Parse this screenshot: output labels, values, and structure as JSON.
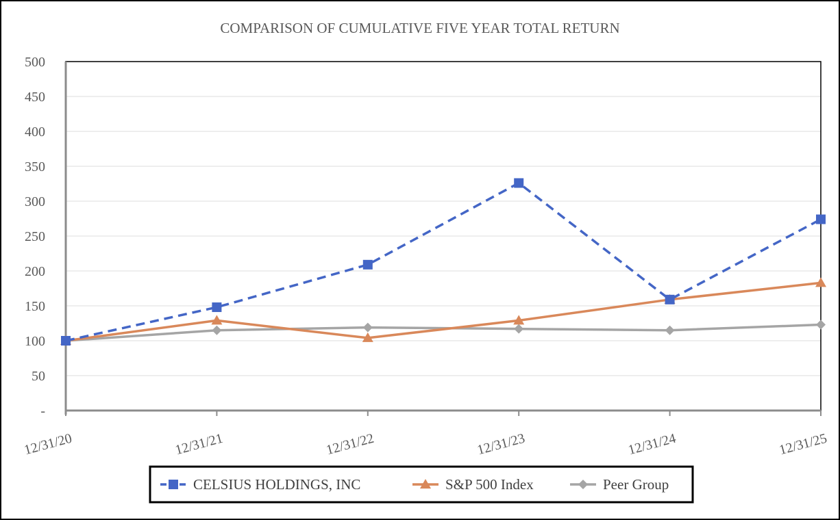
{
  "chart_data": {
    "type": "line",
    "title": "COMPARISON OF CUMULATIVE FIVE YEAR TOTAL RETURN",
    "xlabel": "",
    "ylabel": "",
    "categories": [
      "12/31/20",
      "12/31/21",
      "12/31/22",
      "12/31/23",
      "12/31/24",
      "12/31/25"
    ],
    "ylim": [
      0,
      500
    ],
    "yticks": [
      0,
      50,
      100,
      150,
      200,
      250,
      300,
      350,
      400,
      450,
      500
    ],
    "ytick_labels": [
      "-",
      "50",
      "100",
      "150",
      "200",
      "250",
      "300",
      "350",
      "400",
      "450",
      "500"
    ],
    "grid": true,
    "legend_position": "bottom",
    "series": [
      {
        "name": "CELSIUS HOLDINGS, INC",
        "values": [
          100,
          148,
          209,
          326,
          159,
          274
        ],
        "color": "#4466c6",
        "line_style": "dashed",
        "marker": "square"
      },
      {
        "name": "S&P 500 Index",
        "values": [
          100,
          129,
          104,
          129,
          159,
          183
        ],
        "color": "#d9885a",
        "line_style": "solid",
        "marker": "triangle"
      },
      {
        "name": "Peer Group",
        "values": [
          100,
          115,
          119,
          117,
          115,
          123
        ],
        "color": "#a5a5a5",
        "line_style": "solid",
        "marker": "diamond"
      }
    ]
  }
}
